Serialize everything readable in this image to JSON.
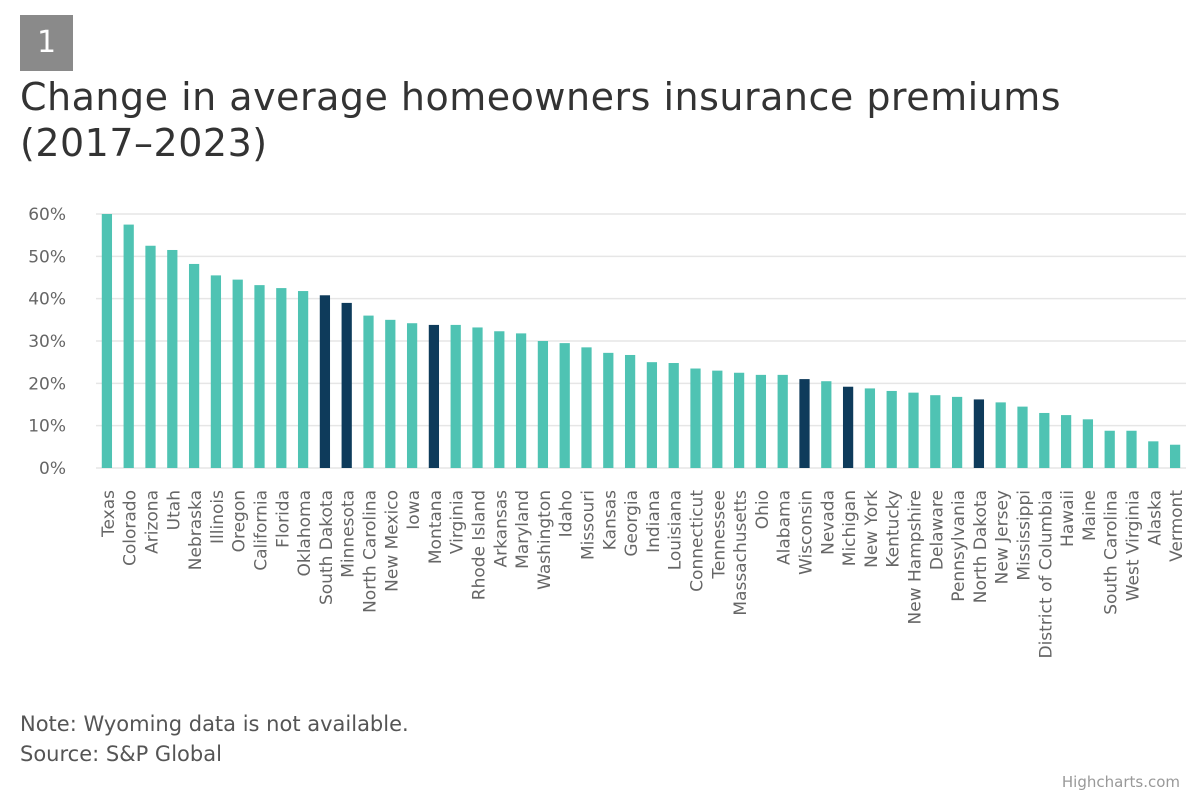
{
  "badge": "1",
  "title_lines": [
    "Change in average homeowners insurance premiums",
    "(2017–2023)"
  ],
  "note": "Note: Wyoming data is not available.",
  "source": "Source: S&P Global",
  "credits": "Highcharts.com",
  "colors": {
    "teal": "#4fc3b3",
    "navy": "#0e3b5b",
    "grid": "#e6e6e6",
    "axis_text": "#666666"
  },
  "chart_data": {
    "type": "bar",
    "title": "Change in average homeowners insurance premiums (2017–2023)",
    "xlabel": "",
    "ylabel": "",
    "ylim": [
      0,
      60
    ],
    "y_ticks": [
      "0%",
      "10%",
      "20%",
      "30%",
      "40%",
      "50%",
      "60%"
    ],
    "y_tick_values": [
      0,
      10,
      20,
      30,
      40,
      50,
      60
    ],
    "grid": true,
    "legend": "none",
    "categories": [
      "Texas",
      "Colorado",
      "Arizona",
      "Utah",
      "Nebraska",
      "Illinois",
      "Oregon",
      "California",
      "Florida",
      "Oklahoma",
      "South Dakota",
      "Minnesota",
      "North Carolina",
      "New Mexico",
      "Iowa",
      "Montana",
      "Virginia",
      "Rhode Island",
      "Arkansas",
      "Maryland",
      "Washington",
      "Idaho",
      "Missouri",
      "Kansas",
      "Georgia",
      "Indiana",
      "Louisiana",
      "Connecticut",
      "Tennessee",
      "Massachusetts",
      "Ohio",
      "Alabama",
      "Wisconsin",
      "Nevada",
      "Michigan",
      "New York",
      "Kentucky",
      "New Hampshire",
      "Delaware",
      "Pennsylvania",
      "North Dakota",
      "New Jersey",
      "Mississippi",
      "District of Columbia",
      "Hawaii",
      "Maine",
      "South Carolina",
      "West Virginia",
      "Alaska",
      "Vermont"
    ],
    "values": [
      60,
      57.5,
      52.5,
      51.5,
      48.2,
      45.5,
      44.5,
      43.2,
      42.5,
      41.8,
      40.8,
      39,
      36,
      35,
      34.2,
      33.8,
      33.8,
      33.2,
      32.3,
      31.8,
      30,
      29.5,
      28.5,
      27.2,
      26.7,
      25,
      24.8,
      23.5,
      23,
      22.5,
      22,
      22,
      21,
      20.5,
      19.2,
      18.8,
      18.2,
      17.8,
      17.2,
      16.8,
      16.2,
      15.5,
      14.5,
      13,
      12.5,
      11.5,
      8.8,
      8.8,
      6.3,
      5.5
    ],
    "highlighted": [
      "South Dakota",
      "Minnesota",
      "Montana",
      "Wisconsin",
      "Michigan",
      "North Dakota"
    ]
  }
}
